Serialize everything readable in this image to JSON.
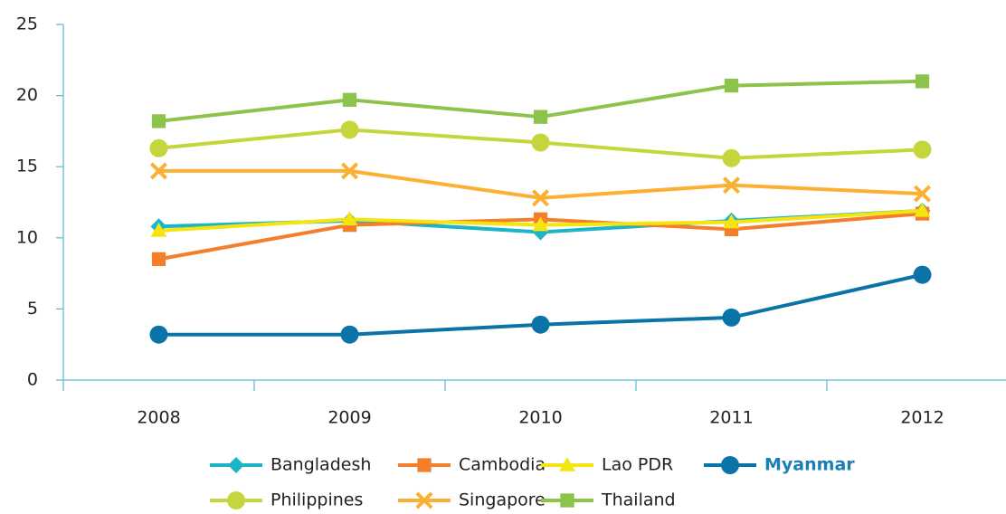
{
  "chart_data": {
    "type": "line",
    "categories": [
      "2008",
      "2009",
      "2010",
      "2011",
      "2012"
    ],
    "series": [
      {
        "name": "Bangladesh",
        "color": "#1bb5c7",
        "marker": "diamond",
        "values": [
          10.8,
          11.2,
          10.4,
          11.2,
          11.9
        ]
      },
      {
        "name": "Cambodia",
        "color": "#f47f2a",
        "marker": "square",
        "values": [
          8.5,
          10.9,
          11.3,
          10.6,
          11.7
        ]
      },
      {
        "name": "Lao PDR",
        "color": "#f5e50f",
        "marker": "triangle",
        "values": [
          10.5,
          11.3,
          10.9,
          11.1,
          11.9
        ]
      },
      {
        "name": "Myanmar",
        "color": "#0a73a8",
        "marker": "circle",
        "legend_text_color": "#1a7fb5",
        "values": [
          3.2,
          3.2,
          3.9,
          4.4,
          7.4
        ]
      },
      {
        "name": "Philippines",
        "color": "#c5d63c",
        "marker": "circle",
        "values": [
          16.3,
          17.6,
          16.7,
          15.6,
          16.2
        ]
      },
      {
        "name": "Singapore",
        "color": "#fbb034",
        "marker": "x",
        "values": [
          14.7,
          14.7,
          12.8,
          13.7,
          13.1
        ]
      },
      {
        "name": "Thailand",
        "color": "#8cc34b",
        "marker": "square",
        "values": [
          18.2,
          19.7,
          18.5,
          20.7,
          21.0
        ]
      }
    ],
    "ylim": [
      0,
      25
    ],
    "yticks": [
      0,
      5,
      10,
      15,
      20,
      25
    ],
    "grid": false,
    "legend": "bottom"
  }
}
